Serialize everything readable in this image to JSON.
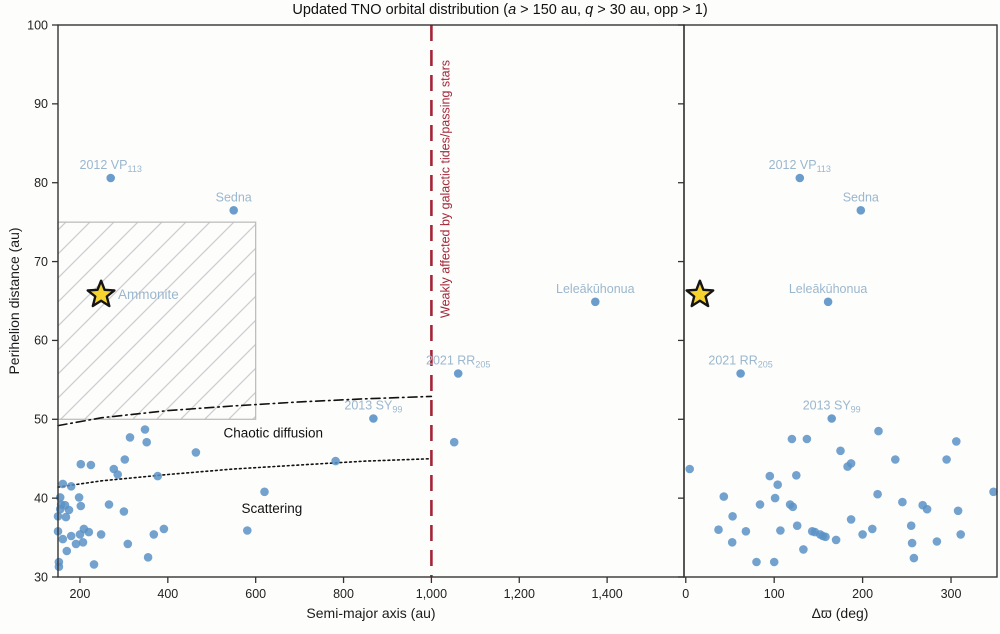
{
  "colors": {
    "point_blue": "#5b92c6",
    "tno_label_blue": "#9bb7ce",
    "red_accent": "#a32638",
    "hatch_line": "#cccccc",
    "hatch_border": "#b9b9b9",
    "star_fill": "#f6d32d",
    "star_stroke": "#151515",
    "spine": "#333333",
    "tick_text": "#222222",
    "curve_black": "#111111"
  },
  "title_parts": [
    {
      "t": "Updated TNO orbital distribution ("
    },
    {
      "t": "a",
      "i": true
    },
    {
      "t": " > 150 au, "
    },
    {
      "t": "q",
      "i": true
    },
    {
      "t": " > 30 au, opp > 1)"
    }
  ],
  "chart_data": {
    "type": "scatter",
    "title": "Updated TNO orbital distribution (a > 150 au, q > 30 au, opp > 1)",
    "ylabel": "Perihelion distance (au)",
    "ylim": [
      30,
      100
    ],
    "yticks": [
      {
        "v": 30,
        "label": "30"
      },
      {
        "v": 40,
        "label": "40"
      },
      {
        "v": 50,
        "label": "50"
      },
      {
        "v": 60,
        "label": "60"
      },
      {
        "v": 70,
        "label": "70"
      },
      {
        "v": 80,
        "label": "80"
      },
      {
        "v": 90,
        "label": "90"
      },
      {
        "v": 100,
        "label": "100"
      }
    ],
    "grid": false,
    "legend": "none",
    "panels": [
      {
        "id": "left",
        "xlabel": "Semi-major axis (au)",
        "xlim": [
          150,
          1575
        ],
        "xticks": [
          {
            "v": 200,
            "label": "200"
          },
          {
            "v": 400,
            "label": "400"
          },
          {
            "v": 600,
            "label": "600"
          },
          {
            "v": 800,
            "label": "800"
          },
          {
            "v": 1000,
            "label": "1,000"
          },
          {
            "v": 1200,
            "label": "1,200"
          },
          {
            "v": 1400,
            "label": "1,400"
          }
        ],
        "points": [
          [
            202,
            44.3
          ],
          [
            225,
            44.2
          ],
          [
            302,
            44.9
          ],
          [
            277,
            43.7
          ],
          [
            286,
            43.0
          ],
          [
            377,
            42.8
          ],
          [
            161,
            41.8
          ],
          [
            180,
            41.5
          ],
          [
            198,
            40.1
          ],
          [
            155,
            40.1
          ],
          [
            157,
            39.2
          ],
          [
            166,
            39.1
          ],
          [
            155,
            38.6
          ],
          [
            175,
            38.5
          ],
          [
            202,
            39.0
          ],
          [
            150,
            37.7
          ],
          [
            168,
            37.6
          ],
          [
            266,
            39.2
          ],
          [
            300,
            38.3
          ],
          [
            209,
            36.1
          ],
          [
            220,
            35.7
          ],
          [
            200,
            35.4
          ],
          [
            180,
            35.2
          ],
          [
            161,
            34.8
          ],
          [
            248,
            35.4
          ],
          [
            368,
            35.4
          ],
          [
            391,
            36.1
          ],
          [
            191,
            34.2
          ],
          [
            207,
            34.4
          ],
          [
            170,
            33.3
          ],
          [
            309,
            34.2
          ],
          [
            355,
            32.5
          ],
          [
            152,
            31.9
          ],
          [
            232,
            31.6
          ],
          [
            152,
            31.3
          ],
          [
            150,
            35.8
          ],
          [
            314,
            47.7
          ],
          [
            348,
            48.7
          ],
          [
            352,
            47.1
          ],
          [
            464,
            45.8
          ],
          [
            782,
            44.7
          ],
          [
            620,
            40.8
          ],
          [
            581,
            35.9
          ],
          [
            1052,
            47.1
          ]
        ],
        "named_points": [
          {
            "text": "2012 VP",
            "sub": "113",
            "x": 270,
            "y": 80.6
          },
          {
            "text": "Sedna",
            "sub": "",
            "x": 550,
            "y": 76.5
          },
          {
            "text": "Leleākūhonua",
            "sub": "",
            "x": 1373,
            "y": 64.9
          },
          {
            "text": "2021 RR",
            "sub": "205",
            "x": 1061,
            "y": 55.8
          },
          {
            "text": "2013 SY",
            "sub": "99",
            "x": 868,
            "y": 50.1
          }
        ],
        "star": {
          "x": 248,
          "y": 65.8,
          "label": "Ammonite"
        },
        "hatch_region": {
          "x0": 150,
          "x1": 600,
          "y0": 50,
          "y1": 75
        },
        "curves": [
          {
            "name": "chaotic-diffusion-boundary",
            "style": "dashdot",
            "points": [
              [
                150,
                49.2
              ],
              [
                250,
                50.2
              ],
              [
                400,
                51.1
              ],
              [
                550,
                51.7
              ],
              [
                700,
                52.2
              ],
              [
                850,
                52.6
              ],
              [
                1000,
                52.9
              ]
            ],
            "label": "Chaotic diffusion",
            "label_at": [
              640,
              47.7
            ]
          },
          {
            "name": "scattering-boundary",
            "style": "dotted",
            "points": [
              [
                150,
                41.4
              ],
              [
                250,
                42.2
              ],
              [
                400,
                43.0
              ],
              [
                550,
                43.7
              ],
              [
                700,
                44.2
              ],
              [
                850,
                44.7
              ],
              [
                1000,
                45.0
              ]
            ],
            "label": "Scattering",
            "label_at": [
              637,
              38.1
            ]
          }
        ],
        "vline": {
          "x": 1000,
          "label": "Weakly affected by galactic tides/passing stars"
        }
      },
      {
        "id": "right",
        "xlabel": "Δϖ (deg)",
        "xlim": [
          -2,
          352
        ],
        "xticks": [
          {
            "v": 0,
            "label": "0"
          },
          {
            "v": 100,
            "label": "100"
          },
          {
            "v": 200,
            "label": "200"
          },
          {
            "v": 300,
            "label": "300"
          }
        ],
        "points": [
          [
            4.5,
            43.7
          ],
          [
            43,
            40.2
          ],
          [
            53,
            37.7
          ],
          [
            37,
            36.0
          ],
          [
            52.5,
            34.4
          ],
          [
            68,
            35.8
          ],
          [
            80,
            31.9
          ],
          [
            84,
            39.2
          ],
          [
            95,
            42.8
          ],
          [
            104,
            41.7
          ],
          [
            101,
            40.0
          ],
          [
            107,
            35.9
          ],
          [
            100,
            31.9
          ],
          [
            118,
            39.2
          ],
          [
            121,
            38.9
          ],
          [
            120,
            47.5
          ],
          [
            125,
            42.9
          ],
          [
            126,
            36.5
          ],
          [
            133,
            33.5
          ],
          [
            137,
            47.5
          ],
          [
            143,
            35.8
          ],
          [
            146,
            35.7
          ],
          [
            152,
            35.4
          ],
          [
            155,
            35.2
          ],
          [
            158,
            35.1
          ],
          [
            170,
            34.7
          ],
          [
            175,
            46.0
          ],
          [
            183,
            44.0
          ],
          [
            187,
            44.4
          ],
          [
            187,
            37.3
          ],
          [
            200,
            35.4
          ],
          [
            211,
            36.1
          ],
          [
            218,
            48.5
          ],
          [
            217,
            40.5
          ],
          [
            237,
            44.9
          ],
          [
            245,
            39.5
          ],
          [
            255,
            36.5
          ],
          [
            256,
            34.3
          ],
          [
            258,
            32.4
          ],
          [
            268,
            39.1
          ],
          [
            273,
            38.6
          ],
          [
            284,
            34.5
          ],
          [
            295,
            44.9
          ],
          [
            306,
            47.2
          ],
          [
            308,
            38.4
          ],
          [
            311,
            35.4
          ],
          [
            348,
            40.8
          ]
        ],
        "named_points": [
          {
            "text": "2012 VP",
            "sub": "113",
            "x": 129,
            "y": 80.6
          },
          {
            "text": "Sedna",
            "sub": "",
            "x": 198,
            "y": 76.5
          },
          {
            "text": "Leleākūhonua",
            "sub": "",
            "x": 161,
            "y": 64.9
          },
          {
            "text": "2021 RR",
            "sub": "205",
            "x": 62,
            "y": 55.8
          },
          {
            "text": "2013 SY",
            "sub": "99",
            "x": 165,
            "y": 50.1
          }
        ],
        "star": {
          "x": 16,
          "y": 65.8,
          "label": ""
        }
      }
    ]
  }
}
